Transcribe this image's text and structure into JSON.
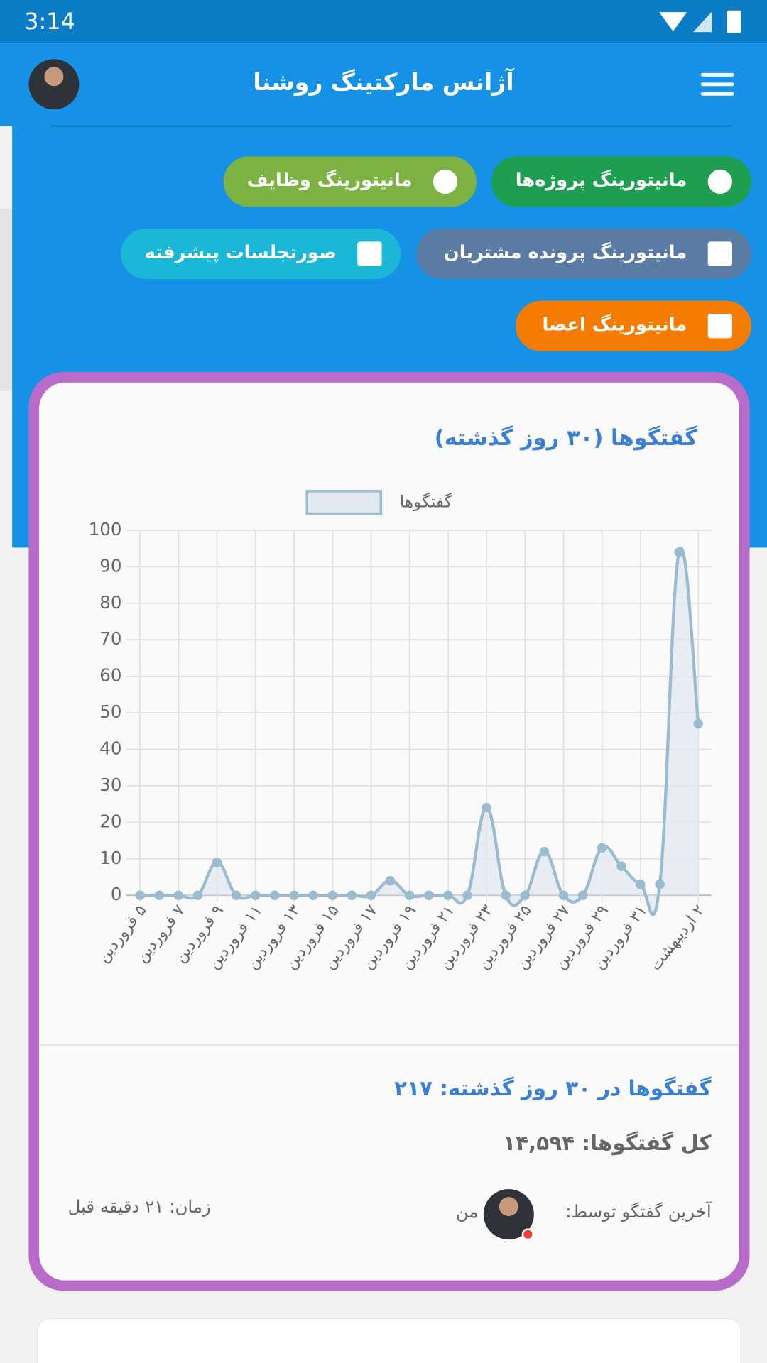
{
  "status_bar": {
    "time": "3:14"
  },
  "app_bar": {
    "title": "آژانس مارکتینگ روشنا"
  },
  "buttons": [
    "مانیتورینگ پروژه‌ها",
    "مانیتورینگ وظایف",
    "مانیتورینگ پرونده مشتریان",
    "صورتجلسات پیشرفته",
    "مانیتورینگ اعضا"
  ],
  "chart_data": {
    "type": "line",
    "title": "گفتگوها (۳۰ روز گذشته)",
    "categories": [
      "۵ فروردین",
      null,
      "۷ فروردین",
      null,
      "۹ فروردین",
      null,
      "۱۱ فروردین",
      null,
      "۱۳ فروردین",
      null,
      "۱۵ فروردین",
      null,
      "۱۷ فروردین",
      null,
      "۱۹ فروردین",
      null,
      "۲۱ فروردین",
      null,
      "۲۳ فروردین",
      null,
      "۲۵ فروردین",
      null,
      "۲۷ فروردین",
      null,
      "۲۹ فروردین",
      null,
      "۳۱ فروردین",
      null,
      null,
      "۲ اردیبهشت"
    ],
    "series": [
      {
        "name": "گفتگوها",
        "color": "#9bbbd0",
        "values": [
          0,
          0,
          0,
          0,
          9,
          0,
          0,
          0,
          0,
          0,
          0,
          0,
          0,
          4,
          0,
          0,
          0,
          0,
          24,
          0,
          0,
          12,
          0,
          0,
          13,
          8,
          3,
          3,
          94,
          47
        ]
      }
    ],
    "ylim": [
      0,
      100
    ],
    "yticks": [
      0,
      10,
      20,
      30,
      40,
      50,
      60,
      70,
      80,
      90,
      100
    ],
    "grid": true,
    "legend": "top"
  },
  "stats": {
    "period_total": "گفتگوها در ۳۰ روز گذشته: ۲۱۷",
    "total": "کل گفتگوها: ۱۴,۵۹۴",
    "last_by_label": "آخرین گفتگو توسط:",
    "last_by_name": "من",
    "time": "زمان: ۲۱ دقیقه قبل"
  }
}
